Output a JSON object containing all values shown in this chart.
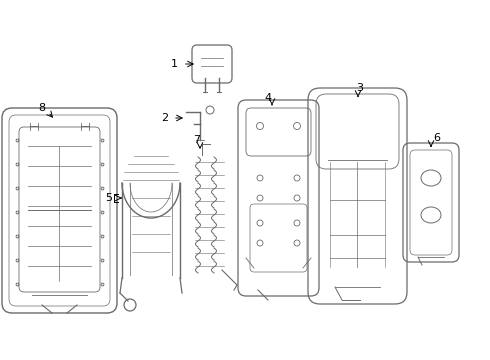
{
  "background_color": "#ffffff",
  "line_color": "#6a6a6a",
  "figsize": [
    4.9,
    3.6
  ],
  "dpi": 100,
  "xlim": [
    0,
    490
  ],
  "ylim": [
    0,
    360
  ]
}
